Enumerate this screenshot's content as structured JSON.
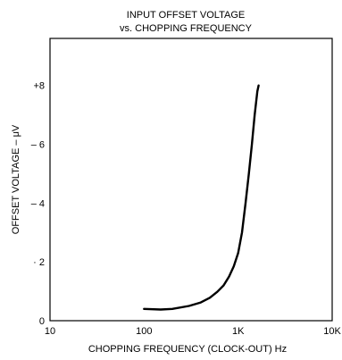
{
  "chart_data": {
    "type": "line",
    "title": "INPUT OFFSET VOLTAGE",
    "subtitle": "vs. CHOPPING FREQUENCY",
    "xlabel": "CHOPPING FREQUENCY (CLOCK-OUT) Hz",
    "ylabel": "OFFSET VOLTAGE – μV",
    "x_scale": "log",
    "xlim": [
      10,
      10000
    ],
    "ylim": [
      0,
      9.6
    ],
    "x_ticks": [
      {
        "value": 10,
        "label": "10"
      },
      {
        "value": 100,
        "label": "100"
      },
      {
        "value": 1000,
        "label": "1K"
      },
      {
        "value": 10000,
        "label": "10K"
      }
    ],
    "y_ticks": [
      {
        "value": 0,
        "label": "0"
      },
      {
        "value": 2,
        "label": "· 2"
      },
      {
        "value": 4,
        "label": "– 4"
      },
      {
        "value": 6,
        "label": "– 6"
      },
      {
        "value": 8,
        "label": "+8"
      }
    ],
    "grid": false,
    "legend": "none",
    "series": [
      {
        "color": "#000000",
        "x": [
          100,
          150,
          200,
          300,
          400,
          500,
          600,
          700,
          800,
          900,
          1000,
          1100,
          1200,
          1300,
          1400,
          1500,
          1600,
          1650
        ],
        "y": [
          0.4,
          0.38,
          0.4,
          0.5,
          0.62,
          0.78,
          0.98,
          1.2,
          1.5,
          1.85,
          2.3,
          3.0,
          4.0,
          5.0,
          6.0,
          7.0,
          7.8,
          8.0
        ]
      }
    ]
  }
}
